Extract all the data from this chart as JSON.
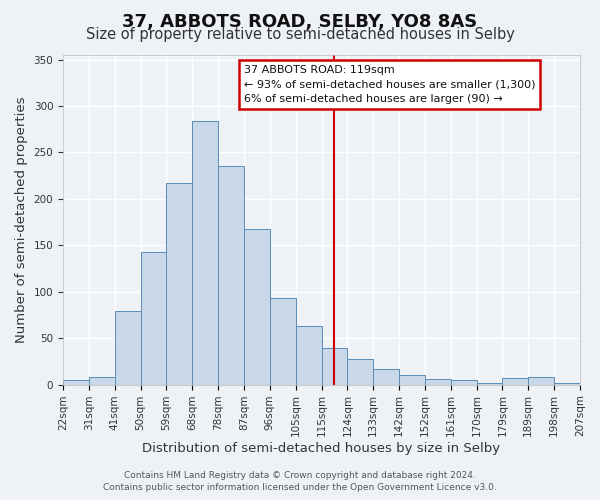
{
  "title": "37, ABBOTS ROAD, SELBY, YO8 8AS",
  "subtitle": "Size of property relative to semi-detached houses in Selby",
  "xlabel": "Distribution of semi-detached houses by size in Selby",
  "ylabel": "Number of semi-detached properties",
  "bin_labels": [
    "22sqm",
    "31sqm",
    "41sqm",
    "50sqm",
    "59sqm",
    "68sqm",
    "78sqm",
    "87sqm",
    "96sqm",
    "105sqm",
    "115sqm",
    "124sqm",
    "133sqm",
    "142sqm",
    "152sqm",
    "161sqm",
    "170sqm",
    "179sqm",
    "189sqm",
    "198sqm",
    "207sqm"
  ],
  "bar_heights": [
    5,
    8,
    79,
    143,
    217,
    284,
    235,
    168,
    93,
    63,
    39,
    28,
    17,
    10,
    6,
    5,
    2,
    7,
    8,
    2
  ],
  "bar_color": "#c8d8e8",
  "bar_edge_color": "#5b8db8",
  "vline_x": 10.5,
  "annotation_title": "37 ABBOTS ROAD: 119sqm",
  "annotation_line1": "← 93% of semi-detached houses are smaller (1,300)",
  "annotation_line2": "6% of semi-detached houses are larger (90) →",
  "annotation_box_color": "#ffffff",
  "annotation_box_edge_color": "#cc0000",
  "vline_color": "#cc0000",
  "ylim": [
    0,
    355
  ],
  "yticks": [
    0,
    50,
    100,
    150,
    200,
    250,
    300,
    350
  ],
  "footer1": "Contains HM Land Registry data © Crown copyright and database right 2024.",
  "footer2": "Contains public sector information licensed under the Open Government Licence v3.0.",
  "background_color": "#eef2f7",
  "grid_color": "#ffffff",
  "title_fontsize": 13,
  "subtitle_fontsize": 10.5,
  "axis_label_fontsize": 9.5,
  "tick_fontsize": 7.5,
  "footer_fontsize": 6.5
}
